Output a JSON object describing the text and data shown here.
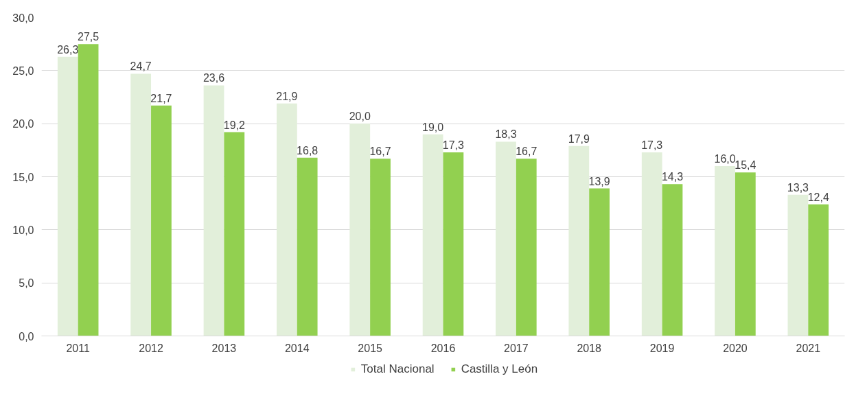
{
  "chart_data": {
    "type": "bar",
    "categories": [
      "2011",
      "2012",
      "2013",
      "2014",
      "2015",
      "2016",
      "2017",
      "2018",
      "2019",
      "2020",
      "2021"
    ],
    "series": [
      {
        "name": "Total Nacional",
        "color": "#e2efda",
        "values": [
          26.3,
          24.7,
          23.6,
          21.9,
          20.0,
          19.0,
          18.3,
          17.9,
          17.3,
          16.0,
          13.3
        ],
        "value_labels": [
          "26,3",
          "24,7",
          "23,6",
          "21,9",
          "20,0",
          "19,0",
          "18,3",
          "17,9",
          "17,3",
          "16,0",
          "13,3"
        ]
      },
      {
        "name": "Castilla y León",
        "color": "#92d050",
        "values": [
          27.5,
          21.7,
          19.2,
          16.8,
          16.7,
          17.3,
          16.7,
          13.9,
          14.3,
          15.4,
          12.4
        ],
        "value_labels": [
          "27,5",
          "21,7",
          "19,2",
          "16,8",
          "16,7",
          "17,3",
          "16,7",
          "13,9",
          "14,3",
          "15,4",
          "12,4"
        ]
      }
    ],
    "ylim": [
      0,
      30
    ],
    "yticks": [
      {
        "value": 0,
        "label": "0,0"
      },
      {
        "value": 5,
        "label": "5,0"
      },
      {
        "value": 10,
        "label": "10,0"
      },
      {
        "value": 15,
        "label": "15,0"
      },
      {
        "value": 20,
        "label": "20,0"
      },
      {
        "value": 25,
        "label": "25,0"
      },
      {
        "value": 30,
        "label": "30,0"
      }
    ],
    "grid": "y",
    "legend": "bottom"
  }
}
